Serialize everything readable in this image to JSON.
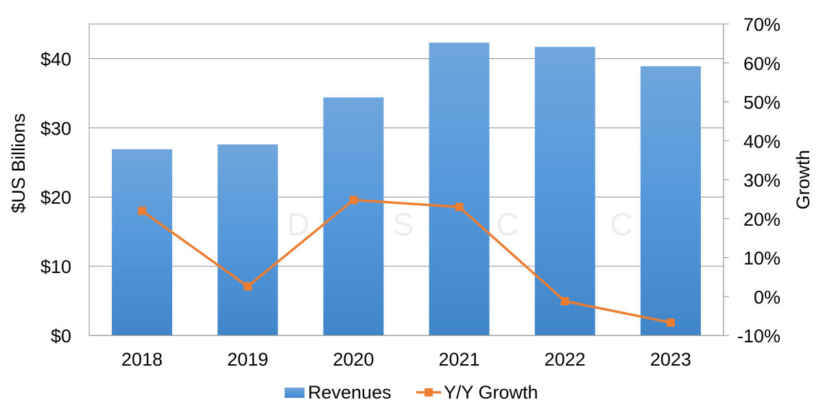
{
  "chart_data": {
    "type": "bar",
    "categories": [
      "2018",
      "2019",
      "2020",
      "2021",
      "2022",
      "2023"
    ],
    "series": [
      {
        "name": "Revenues",
        "kind": "bar",
        "axis": "left",
        "values": [
          26.9,
          27.6,
          34.4,
          42.3,
          41.7,
          38.9
        ],
        "color": "#5b9bd5"
      },
      {
        "name": "Y/Y Growth",
        "kind": "line",
        "axis": "right",
        "values": [
          0.22,
          0.026,
          0.248,
          0.23,
          -0.012,
          -0.067
        ],
        "color": "#ed7d31"
      }
    ],
    "ylabel": "$US Billions",
    "y2label": "Growth",
    "ylim": [
      0,
      45
    ],
    "y2lim": [
      -0.1,
      0.7
    ],
    "yticks": [
      0,
      10,
      20,
      30,
      40
    ],
    "y2ticks": [
      -0.1,
      0,
      0.1,
      0.2,
      0.3,
      0.4,
      0.5,
      0.6,
      0.7
    ],
    "ytick_labels": [
      "$0",
      "$10",
      "$20",
      "$30",
      "$40"
    ],
    "y2tick_labels": [
      "-10%",
      "0%",
      "10%",
      "20%",
      "30%",
      "40%",
      "50%",
      "60%",
      "70%"
    ],
    "grid": true,
    "legend_position": "bottom",
    "watermark": [
      "D",
      "S",
      "C",
      "C"
    ]
  }
}
